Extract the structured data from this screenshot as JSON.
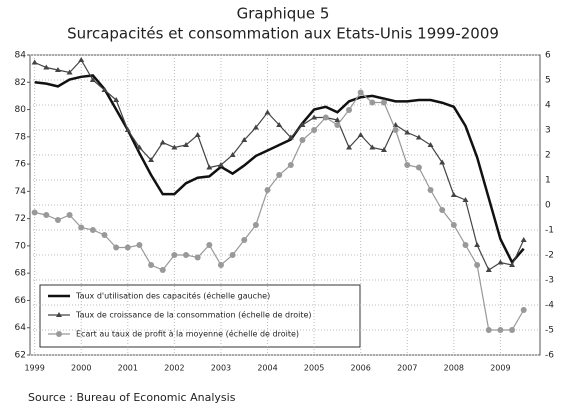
{
  "chart_data": {
    "type": "line",
    "title": "Graphique 5",
    "subtitle": "Surcapacités et consommation aux Etats-Unis 1999-2009",
    "source": "Source : Bureau of Economic Analysis",
    "x": [
      1999,
      1999.25,
      1999.5,
      1999.75,
      2000,
      2000.25,
      2000.5,
      2000.75,
      2001,
      2001.25,
      2001.5,
      2001.75,
      2002,
      2002.25,
      2002.5,
      2002.75,
      2003,
      2003.25,
      2003.5,
      2003.75,
      2004,
      2004.25,
      2004.5,
      2004.75,
      2005,
      2005.25,
      2005.5,
      2005.75,
      2006,
      2006.25,
      2006.5,
      2006.75,
      2007,
      2007.25,
      2007.5,
      2007.75,
      2008,
      2008.25,
      2008.5,
      2008.75,
      2009,
      2009.25,
      2009.5
    ],
    "xlim": [
      1998.9,
      2009.85
    ],
    "xticks": [
      1999,
      2000,
      2001,
      2002,
      2003,
      2004,
      2005,
      2006,
      2007,
      2008,
      2009
    ],
    "ylim": [
      62,
      84
    ],
    "yticks": [
      62,
      64,
      66,
      68,
      70,
      72,
      74,
      76,
      78,
      80,
      82,
      84
    ],
    "y2lim": [
      -6,
      6
    ],
    "y2ticks": [
      -6,
      -5,
      -4,
      -3,
      -2,
      -1,
      0,
      1,
      2,
      3,
      4,
      5,
      6
    ],
    "grid": true,
    "series": [
      {
        "name": "Taux d'utilisation des capacités (échelle gauche)",
        "color": "#111111",
        "marker": "none",
        "axis": "y",
        "values": [
          82.0,
          81.9,
          81.7,
          82.2,
          82.4,
          82.5,
          81.5,
          80,
          78.5,
          76.8,
          75.2,
          73.8,
          73.8,
          74.6,
          75.0,
          75.1,
          75.8,
          75.3,
          75.9,
          76.6,
          77.0,
          77.4,
          77.8,
          79.0,
          80.0,
          80.2,
          79.8,
          80.6,
          80.9,
          81.0,
          80.8,
          80.6,
          80.6,
          80.7,
          80.7,
          80.5,
          80.2,
          78.8,
          76.5,
          73.5,
          70.5,
          68.8,
          69.8
        ]
      },
      {
        "name": "Taux de croissance de la consommation (échelle de droite)",
        "color": "#444444",
        "marker": "triangle",
        "axis": "y2",
        "values": [
          5.7,
          5.5,
          5.4,
          5.3,
          5.8,
          5.0,
          4.6,
          4.2,
          3.0,
          2.3,
          1.8,
          2.5,
          2.3,
          2.4,
          2.8,
          1.5,
          1.6,
          2.0,
          2.6,
          3.1,
          3.7,
          3.2,
          2.7,
          3.2,
          3.5,
          3.5,
          3.4,
          2.3,
          2.8,
          2.3,
          2.2,
          3.2,
          2.9,
          2.7,
          2.4,
          1.7,
          0.4,
          0.2,
          -1.6,
          -2.6,
          -2.3,
          -2.4,
          -1.4
        ]
      },
      {
        "name": "Ecart au taux de profit à la moyenne (échelle de droite)",
        "color": "#999999",
        "marker": "circle",
        "axis": "y2",
        "values": [
          -0.3,
          -0.4,
          -0.6,
          -0.4,
          -0.9,
          -1.0,
          -1.2,
          -1.7,
          -1.7,
          -1.6,
          -2.4,
          -2.6,
          -2.0,
          -2.0,
          -2.1,
          -1.6,
          -2.4,
          -2.0,
          -1.4,
          -0.8,
          0.6,
          1.2,
          1.6,
          2.6,
          3.0,
          3.5,
          3.2,
          3.8,
          4.5,
          4.1,
          4.1,
          3.0,
          1.6,
          1.5,
          0.6,
          -0.2,
          -0.8,
          -1.6,
          -2.4,
          -5.0,
          -5.0,
          -5.0,
          -4.2
        ]
      }
    ]
  }
}
